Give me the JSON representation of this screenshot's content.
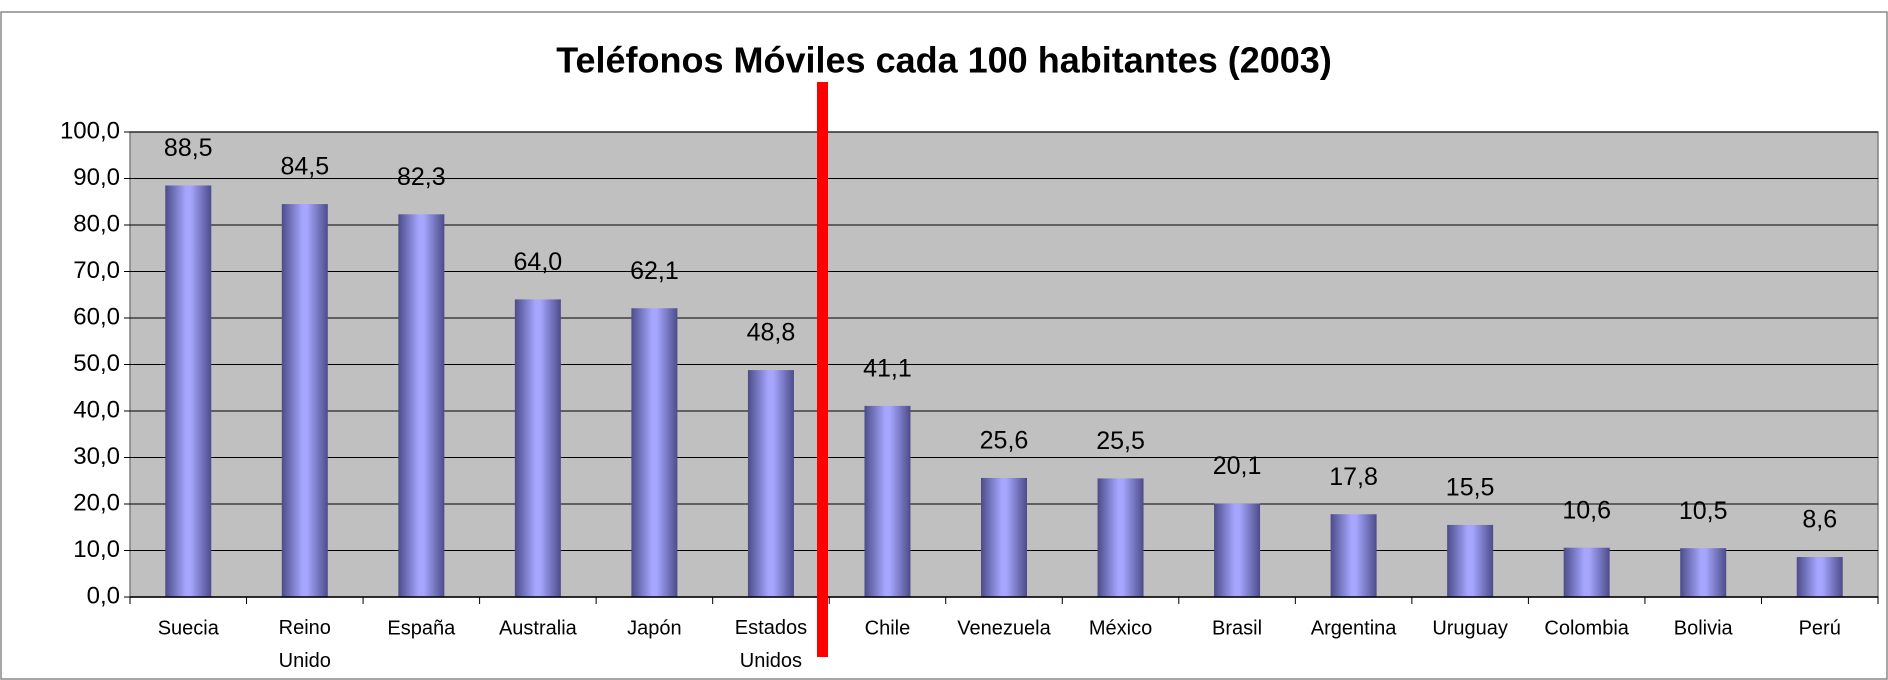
{
  "chart_data": {
    "type": "bar",
    "title": "Teléfonos Móviles cada 100 habitantes (2003)",
    "categories": [
      "Suecia",
      "Reino Unido",
      "España",
      "Australia",
      "Japón",
      "Estados Unidos",
      "Chile",
      "Venezuela",
      "México",
      "Brasil",
      "Argentina",
      "Uruguay",
      "Colombia",
      "Bolivia",
      "Perú"
    ],
    "values": [
      88.5,
      84.5,
      82.3,
      64.0,
      62.1,
      48.8,
      41.1,
      25.6,
      25.5,
      20.1,
      17.8,
      15.5,
      10.6,
      10.5,
      8.6
    ],
    "value_labels": [
      "88,5",
      "84,5",
      "82,3",
      "64,0",
      "62,1",
      "48,8",
      "41,1",
      "25,6",
      "25,5",
      "20,1",
      "17,8",
      "15,5",
      "10,6",
      "10,5",
      "8,6"
    ],
    "color": "#9999ff",
    "ylim": [
      0,
      100
    ],
    "yticks": [
      {
        "value": 0,
        "label": "0,0"
      },
      {
        "value": 10,
        "label": "10,0"
      },
      {
        "value": 20,
        "label": "20,0"
      },
      {
        "value": 30,
        "label": "30,0"
      },
      {
        "value": 40,
        "label": "40,0"
      },
      {
        "value": 50,
        "label": "50,0"
      },
      {
        "value": 60,
        "label": "60,0"
      },
      {
        "value": 70,
        "label": "70,0"
      },
      {
        "value": 80,
        "label": "80,0"
      },
      {
        "value": 90,
        "label": "90,0"
      },
      {
        "value": 100,
        "label": "100,0"
      }
    ],
    "grid": true
  }
}
